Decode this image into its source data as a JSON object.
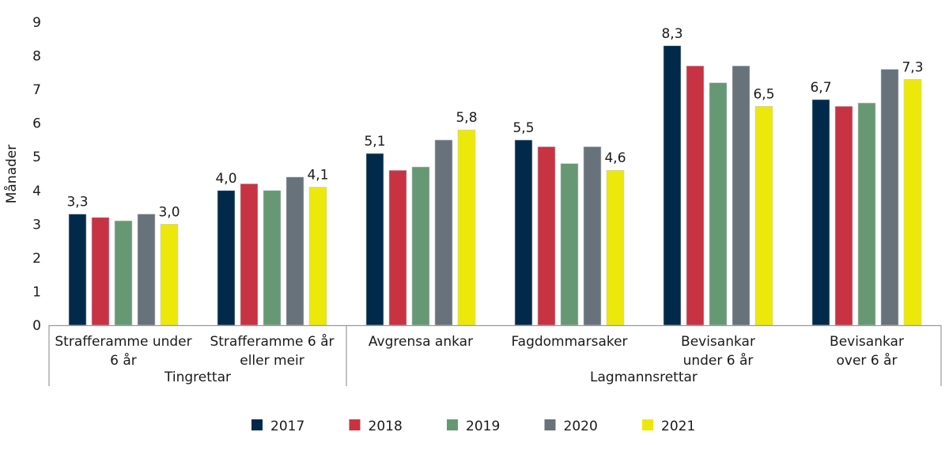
{
  "chart_data": {
    "type": "bar",
    "ylabel": "Månader",
    "xlabel": "",
    "ylim": [
      0,
      9
    ],
    "yticks": [
      "0",
      "1",
      "2",
      "3",
      "4",
      "5",
      "6",
      "7",
      "8",
      "9"
    ],
    "grid": false,
    "legend_position": "bottom",
    "categories": [
      [
        "Strafferamme under",
        "6 år"
      ],
      [
        "Strafferamme 6 år",
        "eller meir"
      ],
      [
        "Avgrensa ankar",
        ""
      ],
      [
        "Fagdommarsaker",
        ""
      ],
      [
        "Bevisankar",
        "under 6 år"
      ],
      [
        "Bevisankar",
        "over 6 år"
      ]
    ],
    "groups": [
      {
        "label": "Tingrettar",
        "categories": [
          0,
          1
        ]
      },
      {
        "label": "Lagmannsrettar",
        "categories": [
          2,
          3,
          4,
          5
        ]
      }
    ],
    "series": [
      {
        "name": "2017",
        "color": "#012a4a",
        "values": [
          3.3,
          4.0,
          5.1,
          5.5,
          8.3,
          6.7
        ]
      },
      {
        "name": "2018",
        "color": "#c83343",
        "values": [
          3.2,
          4.2,
          4.6,
          5.3,
          7.7,
          6.5
        ]
      },
      {
        "name": "2019",
        "color": "#679874",
        "values": [
          3.1,
          4.0,
          4.7,
          4.8,
          7.2,
          6.6
        ]
      },
      {
        "name": "2020",
        "color": "#68727a",
        "values": [
          3.3,
          4.4,
          5.5,
          5.3,
          7.7,
          7.6
        ]
      },
      {
        "name": "2021",
        "color": "#ece80a",
        "values": [
          3.0,
          4.1,
          5.8,
          4.6,
          6.5,
          7.3
        ]
      }
    ],
    "data_labels": [
      {
        "category": 0,
        "series": 0,
        "text": "3,3"
      },
      {
        "category": 0,
        "series": 4,
        "text": "3,0"
      },
      {
        "category": 1,
        "series": 0,
        "text": "4,0"
      },
      {
        "category": 1,
        "series": 4,
        "text": "4,1"
      },
      {
        "category": 2,
        "series": 0,
        "text": "5,1"
      },
      {
        "category": 2,
        "series": 4,
        "text": "5,8"
      },
      {
        "category": 3,
        "series": 0,
        "text": "5,5"
      },
      {
        "category": 3,
        "series": 4,
        "text": "4,6"
      },
      {
        "category": 4,
        "series": 0,
        "text": "8,3"
      },
      {
        "category": 4,
        "series": 4,
        "text": "6,5"
      },
      {
        "category": 5,
        "series": 0,
        "text": "6,7"
      },
      {
        "category": 5,
        "series": 4,
        "text": "7,3"
      }
    ]
  }
}
